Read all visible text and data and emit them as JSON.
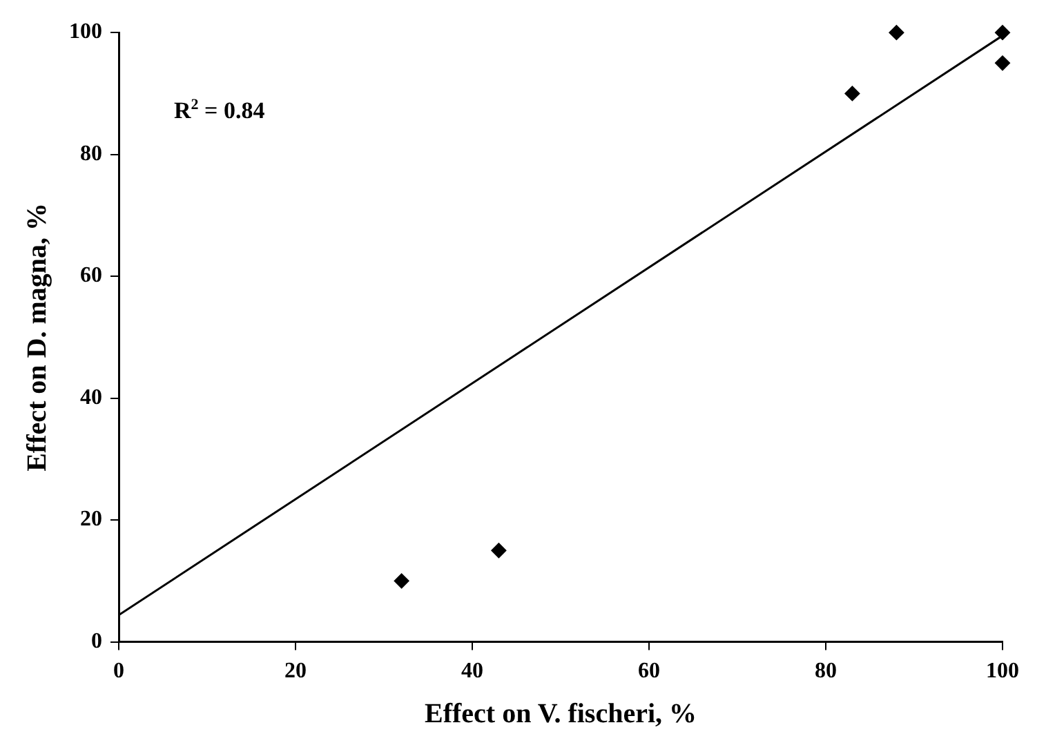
{
  "chart_data": {
    "type": "scatter",
    "xlabel": "Effect on V. fischeri, %",
    "ylabel": "Effect on D. magna, %",
    "series": [
      {
        "color": "#000000",
        "marker": "diamond",
        "x": [
          32,
          43,
          83,
          88,
          100,
          100
        ],
        "values": [
          10,
          15,
          90,
          100,
          100,
          95
        ]
      },
      {
        "type": "line",
        "color": "#000000",
        "marker": "none",
        "x": [
          0,
          100
        ],
        "values": [
          4.4,
          99.5
        ]
      }
    ],
    "xlim": [
      0,
      100
    ],
    "ylim": [
      0,
      100
    ],
    "xticks": [
      0,
      20,
      40,
      60,
      80,
      100
    ],
    "yticks": [
      0,
      20,
      40,
      60,
      80,
      100
    ],
    "grid": false,
    "legend": false,
    "line_style": "solid",
    "annotations": [
      "R$^{2}$ = 0.84"
    ]
  }
}
